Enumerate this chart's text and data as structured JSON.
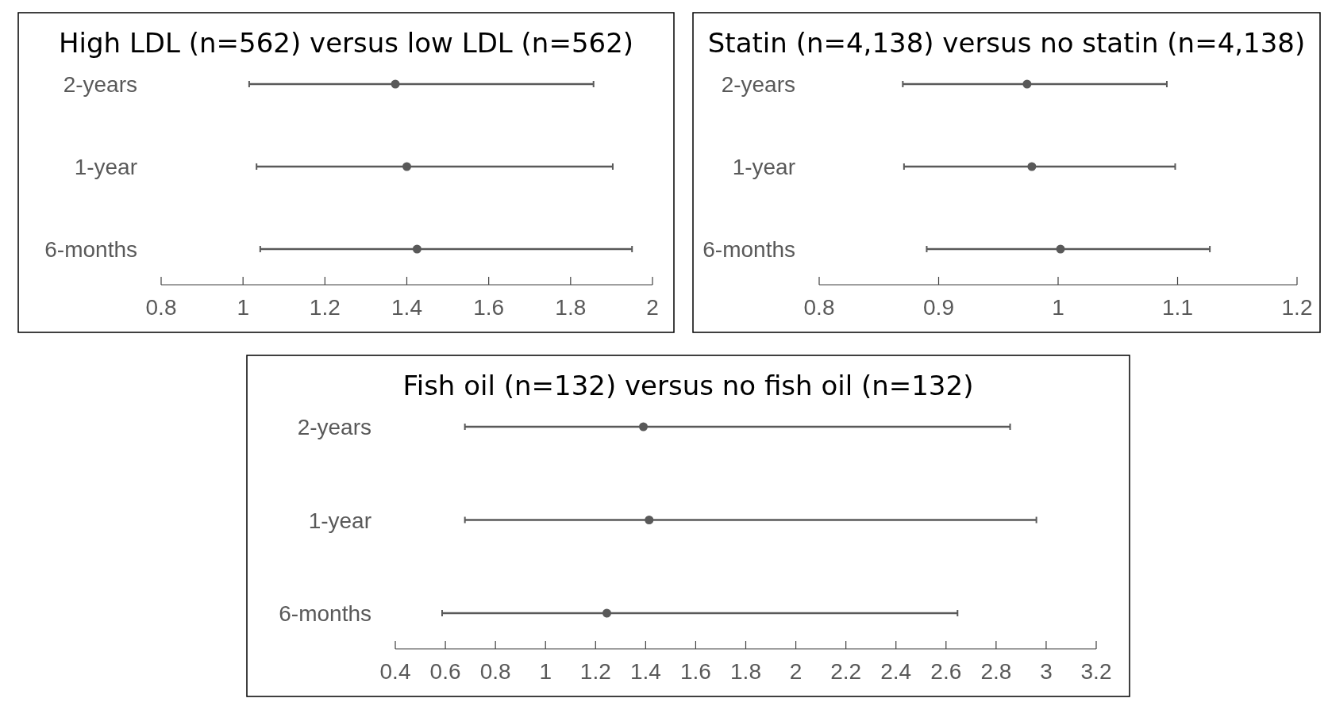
{
  "chart_data": [
    {
      "type": "scatter",
      "title": "High LDL (n=562) versus low LDL (n=562)",
      "orientation": "horizontal",
      "categories": [
        "2-years",
        "1-year",
        "6-months"
      ],
      "color": "#595959",
      "marker": "circle",
      "values": [
        1.372,
        1.4,
        1.425
      ],
      "errors": [
        [
          1.015,
          1.856
        ],
        [
          1.033,
          1.903
        ],
        [
          1.042,
          1.95
        ]
      ],
      "xlim": [
        0.8,
        2
      ],
      "xticks": [
        0.8,
        1,
        1.2,
        1.4,
        1.6,
        1.8,
        2
      ],
      "grid": false
    },
    {
      "type": "scatter",
      "title": "Statin (n=4,138) versus no statin (n=4,138)",
      "orientation": "horizontal",
      "categories": [
        "2-years",
        "1-year",
        "6-months"
      ],
      "color": "#595959",
      "marker": "circle",
      "values": [
        0.974,
        0.978,
        1.002
      ],
      "errors": [
        [
          0.87,
          1.091
        ],
        [
          0.871,
          1.098
        ],
        [
          0.89,
          1.127
        ]
      ],
      "xlim": [
        0.8,
        1.2
      ],
      "xticks": [
        0.8,
        0.9,
        1,
        1.1,
        1.2
      ],
      "grid": false
    },
    {
      "type": "scatter",
      "title": "Fish oil (n=132) versus no fish oil (n=132)",
      "orientation": "horizontal",
      "categories": [
        "2-years",
        "1-year",
        "6-months"
      ],
      "color": "#595959",
      "marker": "circle",
      "values": [
        1.391,
        1.414,
        1.245
      ],
      "errors": [
        [
          0.678,
          2.856
        ],
        [
          0.678,
          2.961
        ],
        [
          0.587,
          2.646
        ]
      ],
      "xlim": [
        0.4,
        3.2
      ],
      "xticks": [
        0.4,
        0.6,
        0.8,
        1,
        1.2,
        1.4,
        1.6,
        1.8,
        2,
        2.2,
        2.4,
        2.6,
        2.8,
        3,
        3.2
      ],
      "grid": false
    }
  ]
}
